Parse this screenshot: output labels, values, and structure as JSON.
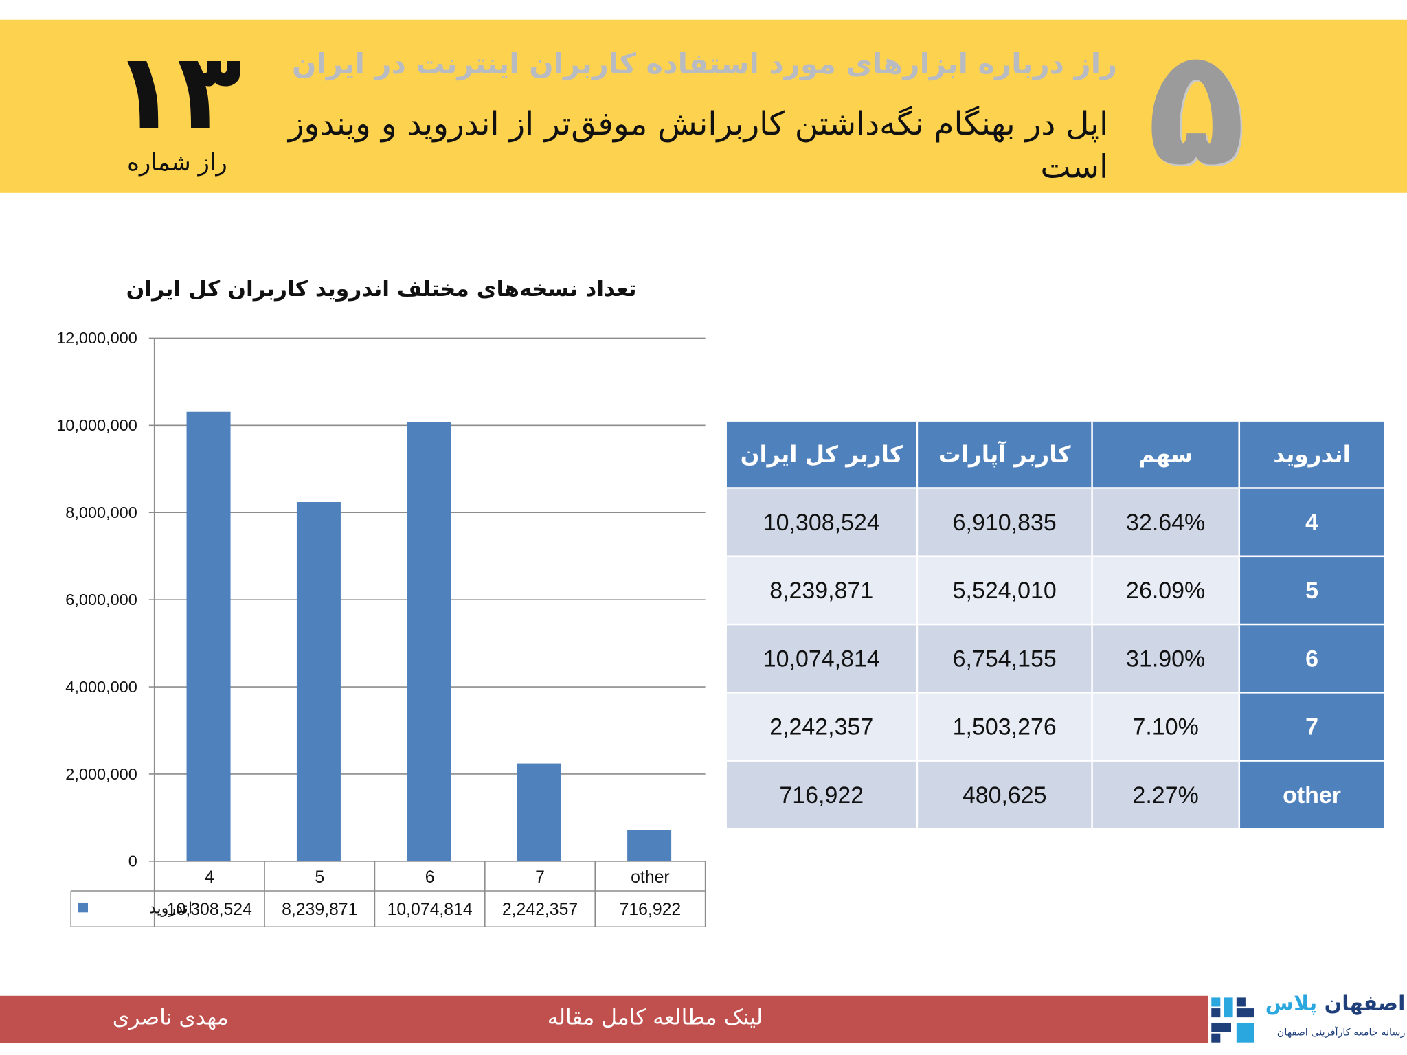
{
  "header": {
    "big_number": "۵",
    "title": "راز درباره ابزارهای مورد استفاده کاربران اینترنت در ایران",
    "subtitle": "اپل در بهنگام نگه‌داشتن کاربرانش موفق‌تر از اندروید و ویندوز است",
    "secret_number": "۱۳",
    "secret_label": "راز شماره"
  },
  "table": {
    "headers": [
      "اندروید",
      "سهم",
      "کاربر آپارات",
      "کاربر کل ایران"
    ],
    "rows": [
      [
        "4",
        "32.64%",
        "6,910,835",
        "10,308,524"
      ],
      [
        "5",
        "26.09%",
        "5,524,010",
        "8,239,871"
      ],
      [
        "6",
        "31.90%",
        "6,754,155",
        "10,074,814"
      ],
      [
        "7",
        "7.10%",
        "1,503,276",
        "2,242,357"
      ],
      [
        "other",
        "2.27%",
        "480,625",
        "716,922"
      ]
    ]
  },
  "chart_data": {
    "type": "bar",
    "title": "تعداد نسخه‌های مختلف اندروید کاربران کل ایران",
    "categories": [
      "4",
      "5",
      "6",
      "7",
      "other"
    ],
    "series": [
      {
        "name": "اندروید",
        "values": [
          10308524,
          8239871,
          10074814,
          2242357,
          716922
        ]
      }
    ],
    "value_labels": [
      "10,308,524",
      "8,239,871",
      "10,074,814",
      "2,242,357",
      "716,922"
    ],
    "y_ticks": [
      "0",
      "2,000,000",
      "4,000,000",
      "6,000,000",
      "8,000,000",
      "10,000,000",
      "12,000,000"
    ],
    "ylim": [
      0,
      12000000
    ],
    "grid": true,
    "legend": "data-table-left",
    "bar_color": "#4f81bd"
  },
  "footer": {
    "author": "مهدی ناصری",
    "link_text": "لینک مطالعه کامل مقاله",
    "logo_name_main": "اصفهان",
    "logo_name_accent": "پلاس",
    "logo_tagline": "رسانه جامعه کارآفرینی اصفهان"
  },
  "colors": {
    "header_bg": "#fdd24f",
    "footer_bg": "#c0504d",
    "table_header": "#4f81bd",
    "table_odd": "#cfd7e7",
    "table_even": "#e8ecf4"
  }
}
